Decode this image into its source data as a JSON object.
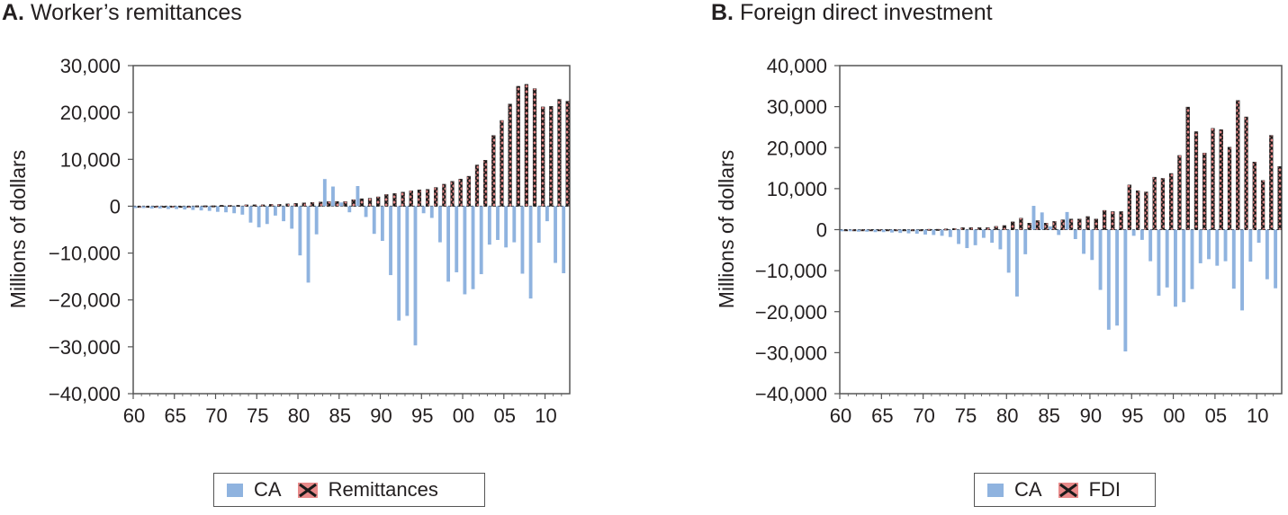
{
  "panels": [
    {
      "letter": "A.",
      "title": "Worker’s remittances",
      "legend": [
        "CA",
        "Remittances"
      ]
    },
    {
      "letter": "B.",
      "title": "Foreign direct investment",
      "legend": [
        "CA",
        "FDI"
      ]
    }
  ],
  "colors": {
    "ca": "#8fb3df",
    "flow": "#e88a8a",
    "flow_hatch": "#1a1a1a",
    "axis": "#555555"
  },
  "chart_data": [
    {
      "type": "bar",
      "title": "Worker’s remittances",
      "ylabel": "Millions of dollars",
      "ylim": [
        -40000,
        30000
      ],
      "yticks": [
        -40000,
        -30000,
        -20000,
        -10000,
        0,
        10000,
        20000,
        30000
      ],
      "ytick_labels": [
        "−40,000",
        "−30,000",
        "−20,000",
        "−10,000",
        "0",
        "10,000",
        "20,000",
        "30,000"
      ],
      "xticks": [
        1960,
        1965,
        1970,
        1975,
        1980,
        1985,
        1990,
        1995,
        2000,
        2005,
        2010
      ],
      "xtick_labels": [
        "60",
        "65",
        "70",
        "75",
        "80",
        "85",
        "90",
        "95",
        "00",
        "05",
        "10"
      ],
      "years": [
        1960,
        1961,
        1962,
        1963,
        1964,
        1965,
        1966,
        1967,
        1968,
        1969,
        1970,
        1971,
        1972,
        1973,
        1974,
        1975,
        1976,
        1977,
        1978,
        1979,
        1980,
        1981,
        1982,
        1983,
        1984,
        1985,
        1986,
        1987,
        1988,
        1989,
        1990,
        1991,
        1992,
        1993,
        1994,
        1995,
        1996,
        1997,
        1998,
        1999,
        2000,
        2001,
        2002,
        2003,
        2004,
        2005,
        2006,
        2007,
        2008,
        2009,
        2010,
        2011,
        2012
      ],
      "series": [
        {
          "name": "CA",
          "values": [
            -400,
            -400,
            -500,
            -500,
            -600,
            -600,
            -700,
            -800,
            -900,
            -1000,
            -1200,
            -1300,
            -1500,
            -1800,
            -3500,
            -4500,
            -3800,
            -2000,
            -3200,
            -4800,
            -10500,
            -16300,
            -6000,
            5800,
            4200,
            800,
            -1300,
            4300,
            -2300,
            -5900,
            -7400,
            -14700,
            -24400,
            -23400,
            -29700,
            -1500,
            -2500,
            -7700,
            -16100,
            -14100,
            -18800,
            -17700,
            -14500,
            -8200,
            -7200,
            -8800,
            -7700,
            -14400,
            -19700,
            -7800,
            -3200,
            -12100,
            -14300
          ]
        },
        {
          "name": "Remittances",
          "values": [
            0,
            0,
            0,
            0,
            0,
            0,
            0,
            100,
            100,
            100,
            200,
            200,
            200,
            300,
            300,
            300,
            400,
            400,
            500,
            600,
            700,
            800,
            900,
            1000,
            1000,
            1000,
            1400,
            1600,
            1700,
            2000,
            2500,
            2700,
            3000,
            3300,
            3500,
            3600,
            4000,
            4700,
            5300,
            5800,
            6400,
            8800,
            9800,
            15100,
            18300,
            21800,
            25600,
            26000,
            25100,
            21200,
            21300,
            22800,
            22400
          ]
        }
      ]
    },
    {
      "type": "bar",
      "title": "Foreign direct investment",
      "ylabel": "Millions of dollars",
      "ylim": [
        -40000,
        40000
      ],
      "yticks": [
        -40000,
        -30000,
        -20000,
        -10000,
        0,
        10000,
        20000,
        30000,
        40000
      ],
      "ytick_labels": [
        "−40,000",
        "−30,000",
        "−20,000",
        "−10,000",
        "0",
        "10,000",
        "20,000",
        "30,000",
        "40,000"
      ],
      "xticks": [
        1960,
        1965,
        1970,
        1975,
        1980,
        1985,
        1990,
        1995,
        2000,
        2005,
        2010
      ],
      "xtick_labels": [
        "60",
        "65",
        "70",
        "75",
        "80",
        "85",
        "90",
        "95",
        "00",
        "05",
        "10"
      ],
      "years": [
        1960,
        1961,
        1962,
        1963,
        1964,
        1965,
        1966,
        1967,
        1968,
        1969,
        1970,
        1971,
        1972,
        1973,
        1974,
        1975,
        1976,
        1977,
        1978,
        1979,
        1980,
        1981,
        1982,
        1983,
        1984,
        1985,
        1986,
        1987,
        1988,
        1989,
        1990,
        1991,
        1992,
        1993,
        1994,
        1995,
        1996,
        1997,
        1998,
        1999,
        2000,
        2001,
        2002,
        2003,
        2004,
        2005,
        2006,
        2007,
        2008,
        2009,
        2010,
        2011,
        2012
      ],
      "series": [
        {
          "name": "CA",
          "values": [
            -400,
            -400,
            -500,
            -500,
            -600,
            -600,
            -700,
            -800,
            -900,
            -1000,
            -1200,
            -1300,
            -1500,
            -1800,
            -3500,
            -4500,
            -3800,
            -2000,
            -3200,
            -4800,
            -10500,
            -16300,
            -6000,
            5800,
            4200,
            800,
            -1300,
            4300,
            -2300,
            -5900,
            -7400,
            -14700,
            -24400,
            -23400,
            -29700,
            -1500,
            -2500,
            -7700,
            -16100,
            -14100,
            -18800,
            -17700,
            -14500,
            -8200,
            -7200,
            -8800,
            -7700,
            -14400,
            -19700,
            -7800,
            -3200,
            -12100,
            -14300
          ]
        },
        {
          "name": "FDI",
          "values": [
            0,
            0,
            0,
            0,
            0,
            0,
            0,
            0,
            0,
            0,
            100,
            100,
            200,
            300,
            500,
            500,
            500,
            500,
            800,
            1000,
            1900,
            2800,
            1600,
            2200,
            1600,
            2000,
            2400,
            2600,
            2600,
            3200,
            2600,
            4700,
            4400,
            4400,
            10900,
            9500,
            9200,
            12800,
            12500,
            13700,
            18100,
            29900,
            23900,
            18700,
            24700,
            24400,
            20100,
            31500,
            27500,
            16500,
            12000,
            23000,
            15400
          ]
        }
      ]
    }
  ]
}
